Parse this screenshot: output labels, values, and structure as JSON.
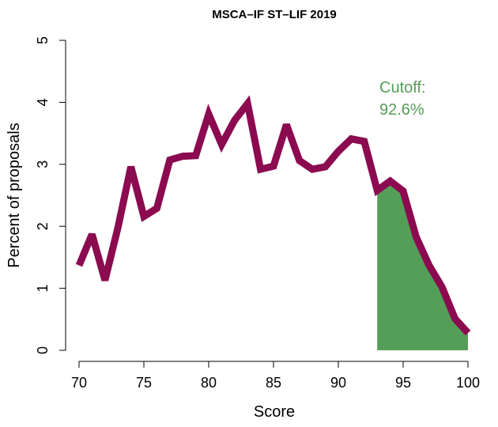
{
  "chart_data": {
    "type": "line",
    "title": "MSCA–IF ST–LIF 2019",
    "xlabel": "Score",
    "ylabel": "Percent of proposals",
    "xlim": [
      70,
      100
    ],
    "ylim": [
      0,
      5
    ],
    "x_ticks": [
      70,
      75,
      80,
      85,
      90,
      95,
      100
    ],
    "y_ticks": [
      0,
      1,
      2,
      3,
      4,
      5
    ],
    "grid": false,
    "series": [
      {
        "name": "Percent of proposals",
        "color": "#8b0a50",
        "x": [
          70,
          71,
          72,
          73,
          74,
          75,
          76,
          77,
          78,
          79,
          80,
          81,
          82,
          83,
          84,
          85,
          86,
          87,
          88,
          89,
          90,
          91,
          92,
          93,
          94,
          95,
          96,
          97,
          98,
          99,
          100
        ],
        "values": [
          1.37,
          1.87,
          1.13,
          1.98,
          2.96,
          2.16,
          2.29,
          3.07,
          3.13,
          3.14,
          3.81,
          3.32,
          3.71,
          3.98,
          2.92,
          2.97,
          3.64,
          3.06,
          2.92,
          2.96,
          3.21,
          3.41,
          3.37,
          2.58,
          2.73,
          2.57,
          1.83,
          1.37,
          1.02,
          0.51,
          0.28
        ]
      }
    ],
    "cutoff": {
      "label_line1": "Cutoff:",
      "label_line2": "92.6%",
      "x_start": 93,
      "color": "#549e57"
    }
  }
}
